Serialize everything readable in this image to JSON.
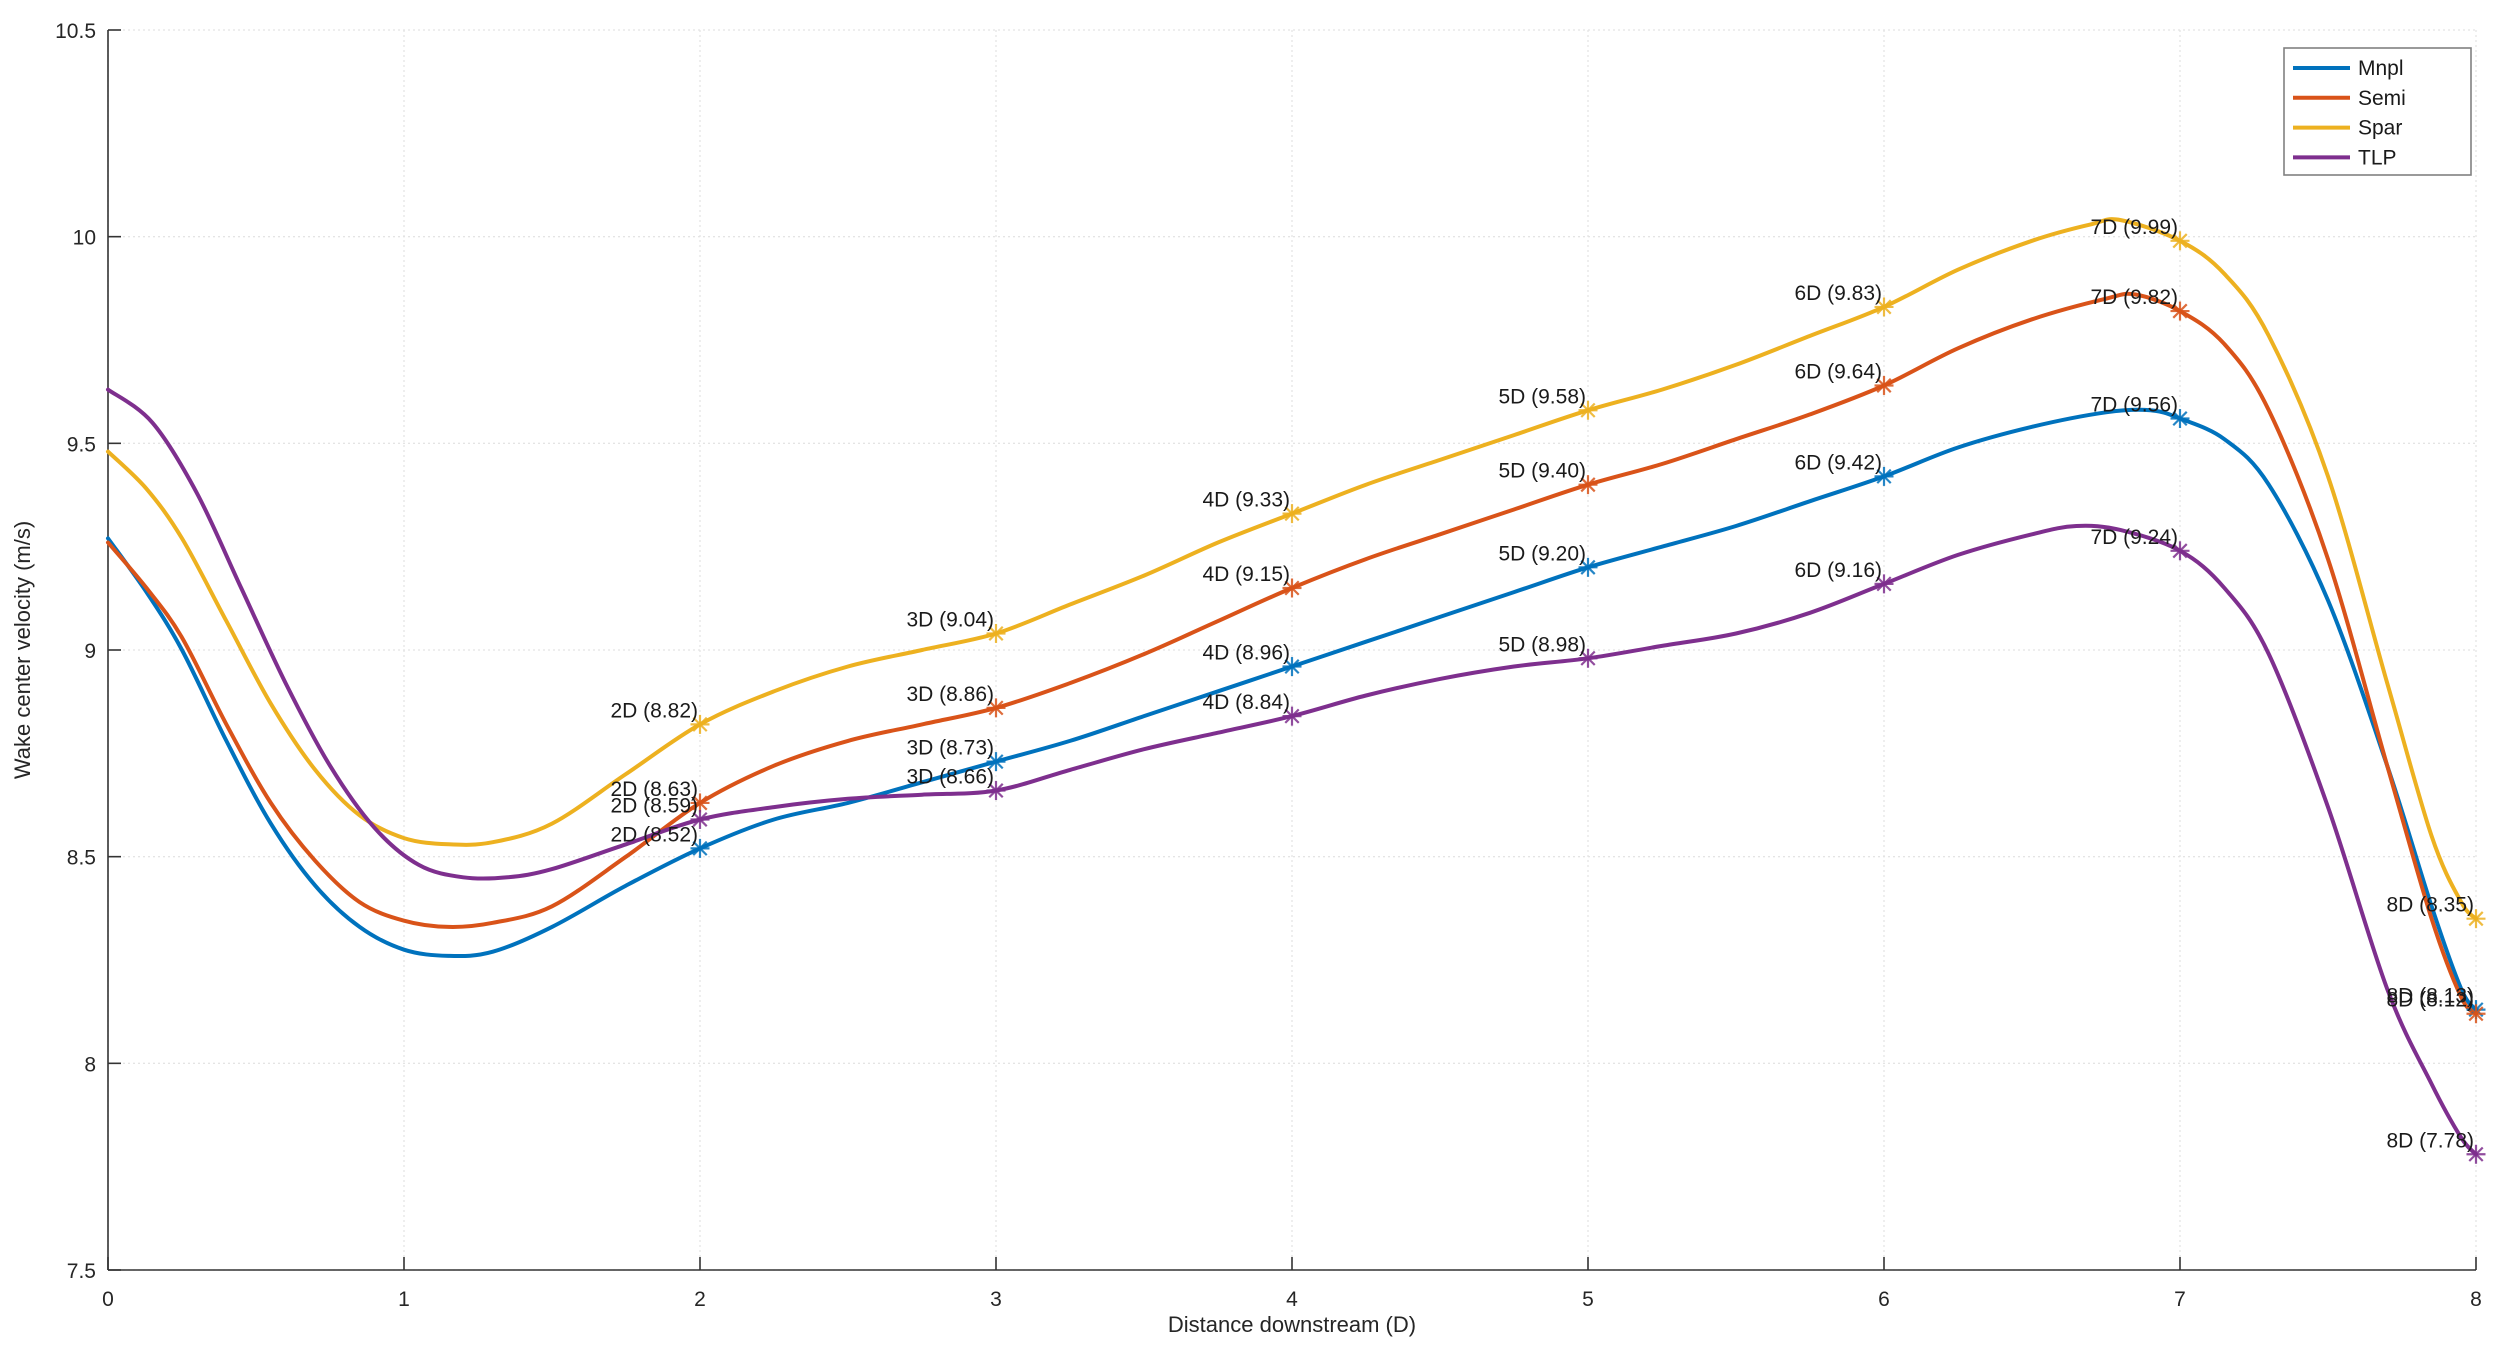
{
  "figure": {
    "background": "#ffffff",
    "axis_color": "#333333",
    "grid_color": "#e2e2e2",
    "tick_label_color": "#262626",
    "data_label_color": "#1a1a1a",
    "legend_border_color": "#818181"
  },
  "chart_data": {
    "type": "line",
    "title": "",
    "xlabel": "Distance downstream (D)",
    "ylabel": "Wake center velocity (m/s)",
    "xlim": [
      0,
      8
    ],
    "ylim": [
      7.5,
      10.5
    ],
    "xticks": [
      "0",
      "1",
      "2",
      "3",
      "4",
      "5",
      "6",
      "7",
      "8"
    ],
    "xtick_values": [
      0,
      1,
      2,
      3,
      4,
      5,
      6,
      7,
      8
    ],
    "yticks": [
      "7.5",
      "8",
      "8.5",
      "9",
      "9.5",
      "10",
      "10.5"
    ],
    "ytick_values": [
      7.5,
      8,
      8.5,
      9,
      9.5,
      10,
      10.5
    ],
    "grid": true,
    "legend_position": "top-right",
    "marker": "asterisk",
    "series": [
      {
        "name": "Mnpl",
        "color": "#0072BD",
        "points": [
          [
            0,
            9.27
          ],
          [
            0.13,
            9.14
          ],
          [
            0.25,
            9.0
          ],
          [
            0.4,
            8.78
          ],
          [
            0.55,
            8.58
          ],
          [
            0.7,
            8.43
          ],
          [
            0.85,
            8.33
          ],
          [
            1.0,
            8.275
          ],
          [
            1.15,
            8.26
          ],
          [
            1.3,
            8.27
          ],
          [
            1.5,
            8.33
          ],
          [
            1.75,
            8.43
          ],
          [
            2,
            8.52
          ],
          [
            2.25,
            8.59
          ],
          [
            2.5,
            8.63
          ],
          [
            2.75,
            8.68
          ],
          [
            3,
            8.73
          ],
          [
            3.25,
            8.78
          ],
          [
            3.5,
            8.84
          ],
          [
            3.75,
            8.9
          ],
          [
            4,
            8.96
          ],
          [
            4.25,
            9.02
          ],
          [
            4.5,
            9.08
          ],
          [
            4.75,
            9.14
          ],
          [
            5,
            9.2
          ],
          [
            5.25,
            9.25
          ],
          [
            5.5,
            9.3
          ],
          [
            5.75,
            9.36
          ],
          [
            6,
            9.42
          ],
          [
            6.25,
            9.49
          ],
          [
            6.5,
            9.54
          ],
          [
            6.75,
            9.575
          ],
          [
            6.9,
            9.58
          ],
          [
            7,
            9.56
          ],
          [
            7.15,
            9.51
          ],
          [
            7.3,
            9.4
          ],
          [
            7.5,
            9.12
          ],
          [
            7.7,
            8.72
          ],
          [
            7.85,
            8.38
          ],
          [
            7.95,
            8.18
          ],
          [
            8,
            8.13
          ]
        ],
        "labeled_points": [
          {
            "x": 2,
            "y": 8.52,
            "label": "2D (8.52)"
          },
          {
            "x": 3,
            "y": 8.73,
            "label": "3D (8.73)"
          },
          {
            "x": 4,
            "y": 8.96,
            "label": "4D (8.96)"
          },
          {
            "x": 5,
            "y": 9.2,
            "label": "5D (9.20)"
          },
          {
            "x": 6,
            "y": 9.42,
            "label": "6D (9.42)"
          },
          {
            "x": 7,
            "y": 9.56,
            "label": "7D (9.56)"
          },
          {
            "x": 8,
            "y": 8.13,
            "label": "8D (8.13)"
          }
        ]
      },
      {
        "name": "Semi",
        "color": "#D95319",
        "points": [
          [
            0,
            9.26
          ],
          [
            0.13,
            9.15
          ],
          [
            0.25,
            9.03
          ],
          [
            0.4,
            8.82
          ],
          [
            0.55,
            8.63
          ],
          [
            0.7,
            8.49
          ],
          [
            0.85,
            8.39
          ],
          [
            1.0,
            8.345
          ],
          [
            1.15,
            8.33
          ],
          [
            1.3,
            8.34
          ],
          [
            1.5,
            8.38
          ],
          [
            1.75,
            8.5
          ],
          [
            2,
            8.63
          ],
          [
            2.25,
            8.72
          ],
          [
            2.5,
            8.78
          ],
          [
            2.75,
            8.82
          ],
          [
            3,
            8.86
          ],
          [
            3.25,
            8.92
          ],
          [
            3.5,
            8.99
          ],
          [
            3.75,
            9.07
          ],
          [
            4,
            9.15
          ],
          [
            4.25,
            9.22
          ],
          [
            4.5,
            9.28
          ],
          [
            4.75,
            9.34
          ],
          [
            5,
            9.4
          ],
          [
            5.25,
            9.45
          ],
          [
            5.5,
            9.51
          ],
          [
            5.75,
            9.57
          ],
          [
            6,
            9.64
          ],
          [
            6.25,
            9.73
          ],
          [
            6.5,
            9.8
          ],
          [
            6.75,
            9.85
          ],
          [
            6.85,
            9.86
          ],
          [
            7,
            9.82
          ],
          [
            7.15,
            9.74
          ],
          [
            7.3,
            9.58
          ],
          [
            7.5,
            9.22
          ],
          [
            7.7,
            8.72
          ],
          [
            7.85,
            8.35
          ],
          [
            7.95,
            8.16
          ],
          [
            8,
            8.12
          ]
        ],
        "labeled_points": [
          {
            "x": 2,
            "y": 8.63,
            "label": "2D (8.63)"
          },
          {
            "x": 3,
            "y": 8.86,
            "label": "3D (8.86)"
          },
          {
            "x": 4,
            "y": 9.15,
            "label": "4D (9.15)"
          },
          {
            "x": 5,
            "y": 9.4,
            "label": "5D (9.40)"
          },
          {
            "x": 6,
            "y": 9.64,
            "label": "6D (9.64)"
          },
          {
            "x": 7,
            "y": 9.82,
            "label": "7D (9.82)"
          },
          {
            "x": 8,
            "y": 8.12,
            "label": "8D (8.12)"
          }
        ]
      },
      {
        "name": "Spar",
        "color": "#EDB120",
        "points": [
          [
            0,
            9.48
          ],
          [
            0.13,
            9.39
          ],
          [
            0.25,
            9.27
          ],
          [
            0.4,
            9.07
          ],
          [
            0.55,
            8.87
          ],
          [
            0.7,
            8.71
          ],
          [
            0.85,
            8.6
          ],
          [
            1.0,
            8.545
          ],
          [
            1.15,
            8.53
          ],
          [
            1.3,
            8.535
          ],
          [
            1.5,
            8.58
          ],
          [
            1.75,
            8.7
          ],
          [
            2,
            8.82
          ],
          [
            2.25,
            8.9
          ],
          [
            2.5,
            8.96
          ],
          [
            2.75,
            9.0
          ],
          [
            3,
            9.04
          ],
          [
            3.25,
            9.11
          ],
          [
            3.5,
            9.18
          ],
          [
            3.75,
            9.26
          ],
          [
            4,
            9.33
          ],
          [
            4.25,
            9.4
          ],
          [
            4.5,
            9.46
          ],
          [
            4.75,
            9.52
          ],
          [
            5,
            9.58
          ],
          [
            5.25,
            9.63
          ],
          [
            5.5,
            9.69
          ],
          [
            5.75,
            9.76
          ],
          [
            6,
            9.83
          ],
          [
            6.25,
            9.92
          ],
          [
            6.5,
            9.99
          ],
          [
            6.7,
            10.03
          ],
          [
            6.8,
            10.04
          ],
          [
            7,
            9.99
          ],
          [
            7.15,
            9.91
          ],
          [
            7.3,
            9.76
          ],
          [
            7.5,
            9.42
          ],
          [
            7.7,
            8.92
          ],
          [
            7.85,
            8.55
          ],
          [
            7.95,
            8.39
          ],
          [
            8,
            8.35
          ]
        ],
        "labeled_points": [
          {
            "x": 2,
            "y": 8.82,
            "label": "2D (8.82)"
          },
          {
            "x": 3,
            "y": 9.04,
            "label": "3D (9.04)"
          },
          {
            "x": 4,
            "y": 9.33,
            "label": "4D (9.33)"
          },
          {
            "x": 5,
            "y": 9.58,
            "label": "5D (9.58)"
          },
          {
            "x": 6,
            "y": 9.83,
            "label": "6D (9.83)"
          },
          {
            "x": 7,
            "y": 9.99,
            "label": "7D (9.99)"
          },
          {
            "x": 8,
            "y": 8.35,
            "label": "8D (8.35)"
          }
        ]
      },
      {
        "name": "TLP",
        "color": "#7E2F8E",
        "points": [
          [
            0,
            9.63
          ],
          [
            0.15,
            9.55
          ],
          [
            0.3,
            9.38
          ],
          [
            0.45,
            9.15
          ],
          [
            0.6,
            8.92
          ],
          [
            0.75,
            8.72
          ],
          [
            0.9,
            8.57
          ],
          [
            1.05,
            8.48
          ],
          [
            1.2,
            8.45
          ],
          [
            1.35,
            8.45
          ],
          [
            1.5,
            8.47
          ],
          [
            1.75,
            8.53
          ],
          [
            2,
            8.59
          ],
          [
            2.25,
            8.62
          ],
          [
            2.5,
            8.64
          ],
          [
            2.75,
            8.65
          ],
          [
            3,
            8.66
          ],
          [
            3.25,
            8.71
          ],
          [
            3.5,
            8.76
          ],
          [
            3.75,
            8.8
          ],
          [
            4,
            8.84
          ],
          [
            4.25,
            8.89
          ],
          [
            4.5,
            8.93
          ],
          [
            4.75,
            8.96
          ],
          [
            5,
            8.98
          ],
          [
            5.25,
            9.01
          ],
          [
            5.5,
            9.04
          ],
          [
            5.75,
            9.09
          ],
          [
            6,
            9.16
          ],
          [
            6.25,
            9.23
          ],
          [
            6.5,
            9.28
          ],
          [
            6.65,
            9.3
          ],
          [
            6.8,
            9.29
          ],
          [
            7,
            9.24
          ],
          [
            7.15,
            9.15
          ],
          [
            7.3,
            8.99
          ],
          [
            7.5,
            8.62
          ],
          [
            7.7,
            8.18
          ],
          [
            7.85,
            7.95
          ],
          [
            7.95,
            7.82
          ],
          [
            8,
            7.78
          ]
        ],
        "labeled_points": [
          {
            "x": 2,
            "y": 8.59,
            "label": "2D (8.59)"
          },
          {
            "x": 3,
            "y": 8.66,
            "label": "3D (8.66)"
          },
          {
            "x": 4,
            "y": 8.84,
            "label": "4D (8.84)"
          },
          {
            "x": 5,
            "y": 8.98,
            "label": "5D (8.98)"
          },
          {
            "x": 6,
            "y": 9.16,
            "label": "6D (9.16)"
          },
          {
            "x": 7,
            "y": 9.24,
            "label": "7D (9.24)"
          },
          {
            "x": 8,
            "y": 7.78,
            "label": "8D (7.78)"
          }
        ]
      }
    ]
  }
}
